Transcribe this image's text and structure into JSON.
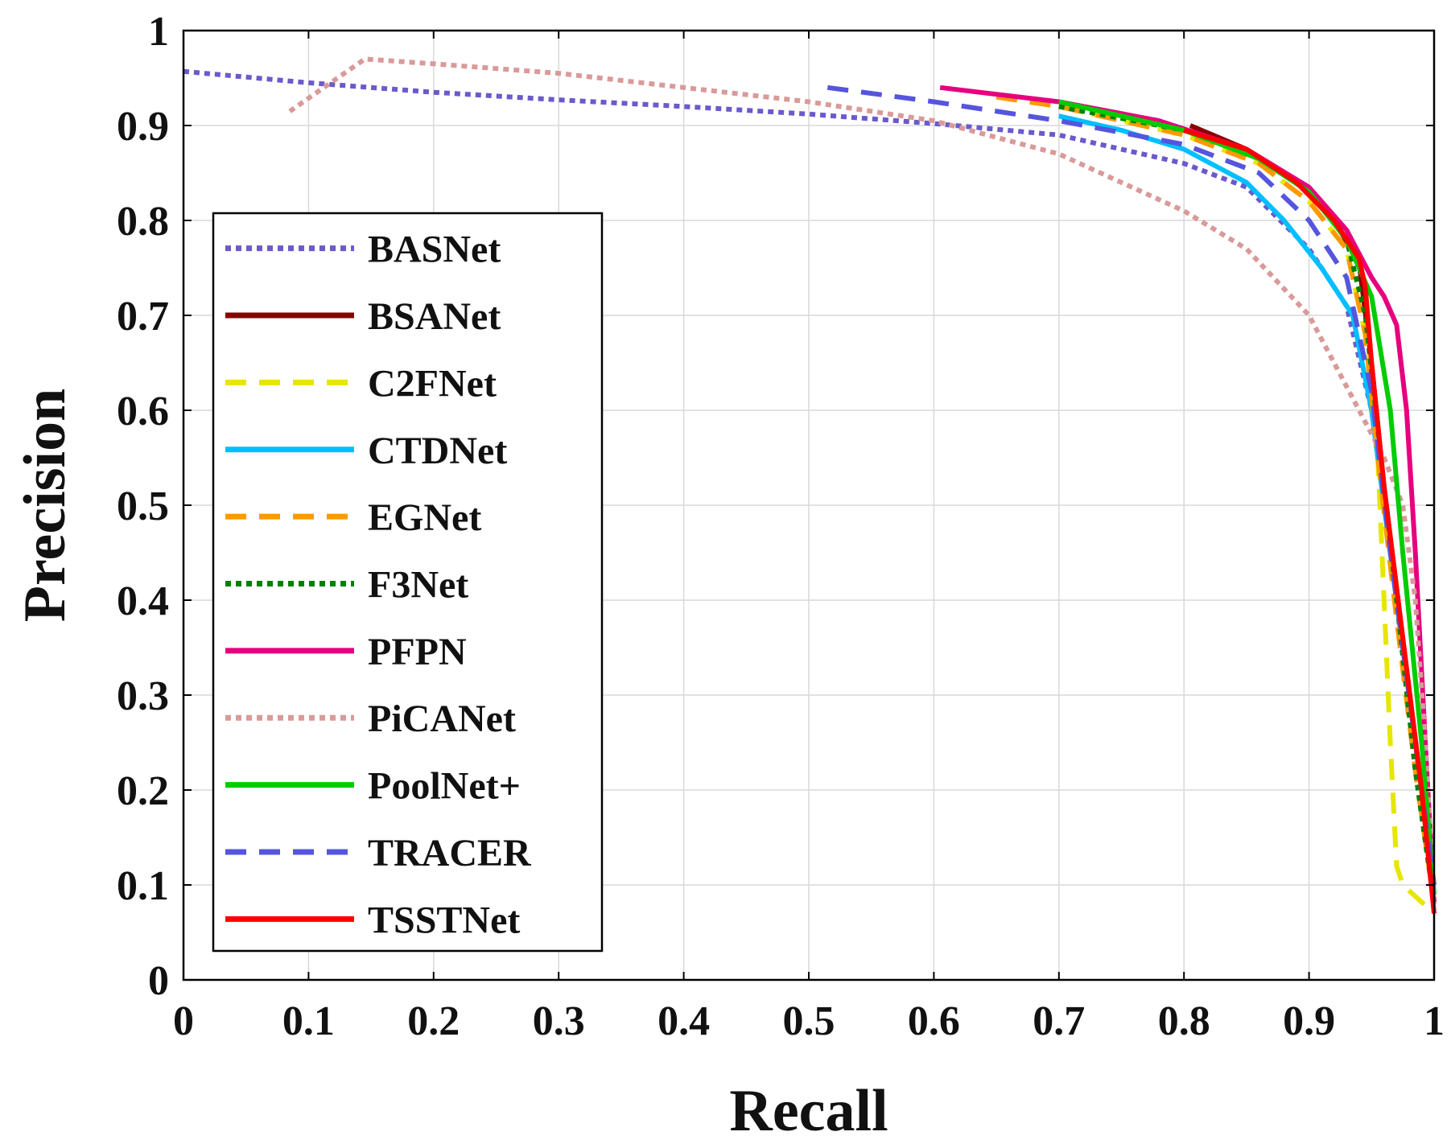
{
  "chart_data": {
    "type": "line",
    "title": "",
    "xlabel": "Recall",
    "ylabel": "Precision",
    "xlim": [
      0,
      1
    ],
    "ylim": [
      0,
      1
    ],
    "grid": true,
    "legend_position": "center-left",
    "xticks": [
      "0",
      "0.1",
      "0.2",
      "0.3",
      "0.4",
      "0.5",
      "0.6",
      "0.7",
      "0.8",
      "0.9",
      "1"
    ],
    "yticks": [
      "0",
      "0.1",
      "0.2",
      "0.3",
      "0.4",
      "0.5",
      "0.6",
      "0.7",
      "0.8",
      "0.9",
      "1"
    ],
    "series": [
      {
        "name": "BASNet",
        "color": "#6a5acd",
        "style": "dotted",
        "points": [
          [
            0,
            0.957
          ],
          [
            0.1,
            0.945
          ],
          [
            0.2,
            0.935
          ],
          [
            0.3,
            0.927
          ],
          [
            0.4,
            0.92
          ],
          [
            0.5,
            0.912
          ],
          [
            0.6,
            0.902
          ],
          [
            0.7,
            0.89
          ],
          [
            0.8,
            0.86
          ],
          [
            0.85,
            0.835
          ],
          [
            0.9,
            0.77
          ],
          [
            0.93,
            0.71
          ],
          [
            0.95,
            0.6
          ],
          [
            0.97,
            0.4
          ],
          [
            0.99,
            0.2
          ],
          [
            1.0,
            0.08
          ]
        ]
      },
      {
        "name": "BSANet",
        "color": "#8b0000",
        "style": "solid",
        "points": [
          [
            0.805,
            0.9
          ],
          [
            0.85,
            0.875
          ],
          [
            0.89,
            0.84
          ],
          [
            0.92,
            0.8
          ],
          [
            0.94,
            0.755
          ],
          [
            0.95,
            0.65
          ],
          [
            0.96,
            0.52
          ],
          [
            0.975,
            0.36
          ],
          [
            0.99,
            0.2
          ],
          [
            1.0,
            0.08
          ]
        ]
      },
      {
        "name": "C2FNet",
        "color": "#e6e600",
        "style": "dashed",
        "points": [
          [
            0.7,
            0.92
          ],
          [
            0.8,
            0.89
          ],
          [
            0.86,
            0.86
          ],
          [
            0.9,
            0.82
          ],
          [
            0.93,
            0.77
          ],
          [
            0.945,
            0.68
          ],
          [
            0.955,
            0.55
          ],
          [
            0.96,
            0.4
          ],
          [
            0.965,
            0.25
          ],
          [
            0.97,
            0.12
          ],
          [
            0.975,
            0.1
          ],
          [
            1.0,
            0.07
          ]
        ]
      },
      {
        "name": "CTDNet",
        "color": "#00bfff",
        "style": "solid",
        "points": [
          [
            0.7,
            0.91
          ],
          [
            0.75,
            0.895
          ],
          [
            0.8,
            0.875
          ],
          [
            0.85,
            0.84
          ],
          [
            0.88,
            0.8
          ],
          [
            0.91,
            0.75
          ],
          [
            0.935,
            0.7
          ],
          [
            0.95,
            0.6
          ],
          [
            0.965,
            0.45
          ],
          [
            0.98,
            0.3
          ],
          [
            1.0,
            0.1
          ]
        ]
      },
      {
        "name": "EGNet",
        "color": "#ff9900",
        "style": "dashed",
        "points": [
          [
            0.65,
            0.93
          ],
          [
            0.7,
            0.92
          ],
          [
            0.8,
            0.89
          ],
          [
            0.86,
            0.86
          ],
          [
            0.9,
            0.82
          ],
          [
            0.93,
            0.77
          ],
          [
            0.945,
            0.68
          ],
          [
            0.955,
            0.55
          ],
          [
            0.97,
            0.38
          ],
          [
            0.985,
            0.22
          ],
          [
            1.0,
            0.08
          ]
        ]
      },
      {
        "name": "F3Net",
        "color": "#008000",
        "style": "dotted",
        "points": [
          [
            0.7,
            0.92
          ],
          [
            0.8,
            0.895
          ],
          [
            0.86,
            0.865
          ],
          [
            0.9,
            0.83
          ],
          [
            0.93,
            0.78
          ],
          [
            0.945,
            0.7
          ],
          [
            0.955,
            0.58
          ],
          [
            0.97,
            0.4
          ],
          [
            0.985,
            0.22
          ],
          [
            1.0,
            0.08
          ]
        ]
      },
      {
        "name": "PFPN",
        "color": "#e6007e",
        "style": "solid",
        "points": [
          [
            0.605,
            0.94
          ],
          [
            0.7,
            0.925
          ],
          [
            0.78,
            0.905
          ],
          [
            0.85,
            0.875
          ],
          [
            0.9,
            0.835
          ],
          [
            0.93,
            0.79
          ],
          [
            0.95,
            0.74
          ],
          [
            0.96,
            0.72
          ],
          [
            0.97,
            0.69
          ],
          [
            0.978,
            0.6
          ],
          [
            0.985,
            0.45
          ],
          [
            0.993,
            0.25
          ],
          [
            1.0,
            0.08
          ]
        ]
      },
      {
        "name": "PiCANet",
        "color": "#d99a9a",
        "style": "dotted",
        "points": [
          [
            0.085,
            0.915
          ],
          [
            0.145,
            0.97
          ],
          [
            0.2,
            0.965
          ],
          [
            0.3,
            0.955
          ],
          [
            0.4,
            0.94
          ],
          [
            0.5,
            0.925
          ],
          [
            0.6,
            0.905
          ],
          [
            0.7,
            0.87
          ],
          [
            0.8,
            0.81
          ],
          [
            0.85,
            0.77
          ],
          [
            0.9,
            0.7
          ],
          [
            0.94,
            0.6
          ],
          [
            0.96,
            0.55
          ],
          [
            0.975,
            0.5
          ],
          [
            0.985,
            0.4
          ],
          [
            0.993,
            0.25
          ],
          [
            1.0,
            0.08
          ]
        ]
      },
      {
        "name": "PoolNet+",
        "color": "#00cc00",
        "style": "solid",
        "points": [
          [
            0.7,
            0.925
          ],
          [
            0.8,
            0.895
          ],
          [
            0.86,
            0.865
          ],
          [
            0.9,
            0.83
          ],
          [
            0.93,
            0.78
          ],
          [
            0.95,
            0.72
          ],
          [
            0.965,
            0.6
          ],
          [
            0.975,
            0.45
          ],
          [
            0.99,
            0.25
          ],
          [
            1.0,
            0.09
          ]
        ]
      },
      {
        "name": "TRACER",
        "color": "#5555dd",
        "style": "dashed",
        "points": [
          [
            0.515,
            0.94
          ],
          [
            0.6,
            0.925
          ],
          [
            0.7,
            0.905
          ],
          [
            0.8,
            0.88
          ],
          [
            0.86,
            0.85
          ],
          [
            0.9,
            0.8
          ],
          [
            0.93,
            0.74
          ],
          [
            0.95,
            0.62
          ],
          [
            0.965,
            0.45
          ],
          [
            0.98,
            0.3
          ],
          [
            1.0,
            0.1
          ]
        ]
      },
      {
        "name": "TSSTNet",
        "color": "#ff0000",
        "style": "solid",
        "points": [
          [
            0.8,
            0.895
          ],
          [
            0.85,
            0.875
          ],
          [
            0.89,
            0.84
          ],
          [
            0.92,
            0.8
          ],
          [
            0.94,
            0.76
          ],
          [
            0.945,
            0.73
          ],
          [
            0.95,
            0.65
          ],
          [
            0.96,
            0.52
          ],
          [
            0.975,
            0.36
          ],
          [
            0.99,
            0.2
          ],
          [
            1.0,
            0.07
          ]
        ]
      }
    ]
  }
}
